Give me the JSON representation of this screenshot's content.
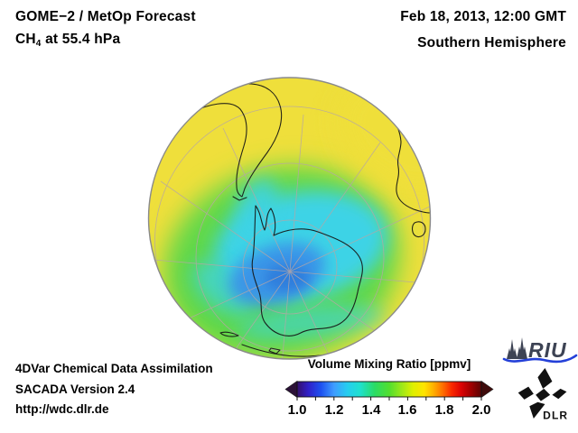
{
  "header": {
    "title_line1": "GOME−2 / MetOp Forecast",
    "formula": {
      "prefix": "CH",
      "sub": "4",
      "suffix": " at 55.4 hPa"
    },
    "datetime": "Feb 18, 2013, 12:00 GMT",
    "region": "Southern Hemisphere"
  },
  "footer": {
    "line1": "4DVar Chemical Data Assimilation",
    "line2": "SACADA Version 2.4",
    "line3": "http://wdc.dlr.de"
  },
  "colorbar": {
    "title": "Volume Mixing Ratio [ppmv]",
    "ticks": [
      "1.0",
      "1.2",
      "1.4",
      "1.6",
      "1.8",
      "2.0"
    ],
    "gradient": [
      {
        "o": 0,
        "c": "#35106a"
      },
      {
        "o": 6,
        "c": "#3020c8"
      },
      {
        "o": 13,
        "c": "#1e52f0"
      },
      {
        "o": 20,
        "c": "#3f9cff"
      },
      {
        "o": 27,
        "c": "#26ccf0"
      },
      {
        "o": 34,
        "c": "#1fe0d0"
      },
      {
        "o": 42,
        "c": "#2adc66"
      },
      {
        "o": 50,
        "c": "#52de2e"
      },
      {
        "o": 57,
        "c": "#9fe818"
      },
      {
        "o": 63,
        "c": "#dff000"
      },
      {
        "o": 69,
        "c": "#ffe400"
      },
      {
        "o": 74,
        "c": "#ffb000"
      },
      {
        "o": 79,
        "c": "#ff7000"
      },
      {
        "o": 84,
        "c": "#f92800"
      },
      {
        "o": 89,
        "c": "#dc0404"
      },
      {
        "o": 94,
        "c": "#a40000"
      },
      {
        "o": 100,
        "c": "#5a0404"
      }
    ]
  },
  "logos": {
    "riu_label": "RIU",
    "dlr_label": "DLR"
  },
  "colors": {
    "text": "#000000",
    "field_yellow": "#efdf3b",
    "field_green": "#5fd848",
    "field_cyan": "#3ed3e6",
    "field_blue": "#3b92e8",
    "field_deep_blue": "#2e7cdc",
    "graticule": "#b6a6a6",
    "coastline": "#151515",
    "limb": "#8a8a8a",
    "arrow_left": "#2b1136",
    "arrow_right": "#3f0b0b",
    "riu_dark": "#3d4354",
    "riu_wave": "#2440d8",
    "dlr_black": "#111111"
  },
  "chart_data": {
    "type": "heatmap",
    "title": "GOME−2 / MetOp Forecast CH4 at 55.4 hPa",
    "datetime": "Feb 18, 2013, 12:00 GMT",
    "view": "Southern Hemisphere, orthographic projection centered near the South Pole",
    "colorbar": {
      "label": "Volume Mixing Ratio [ppmv]",
      "range": [
        1.0,
        2.0
      ],
      "tick_values": [
        1.0,
        1.2,
        1.4,
        1.6,
        1.8,
        2.0
      ],
      "out_of_range_arrows": true
    },
    "field_summary": [
      {
        "region": "low latitudes / outer rim of disk",
        "approx_value_ppmv": 1.6,
        "color": "yellow"
      },
      {
        "region": "mid latitudes (40–60°S)",
        "approx_value_ppmv": 1.45,
        "color": "green"
      },
      {
        "region": "polar vortex over Antarctica",
        "approx_value_ppmv": 1.3,
        "color": "cyan"
      },
      {
        "region": "vortex core just off the pole",
        "approx_value_ppmv": 1.15,
        "color": "blue"
      }
    ],
    "graticule": "meridians every 30° converging at the pole, latitude circles",
    "coastlines_visible": [
      "South America",
      "Antarctica",
      "southern Africa",
      "Madagascar",
      "islands near bottom limb"
    ]
  }
}
